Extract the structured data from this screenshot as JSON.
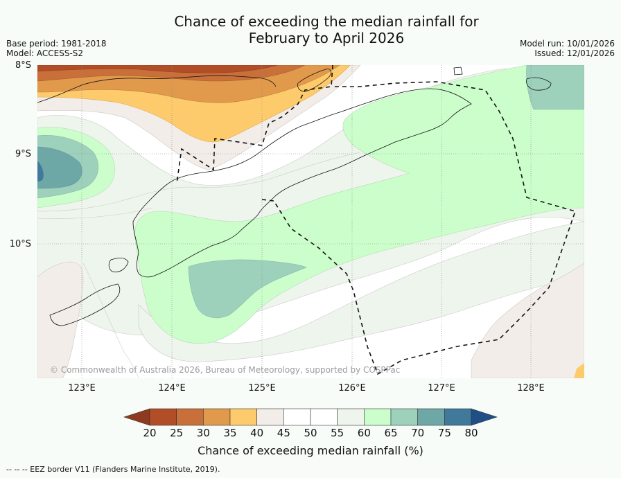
{
  "title_line1": "Chance of exceeding the median rainfall for",
  "title_line2": "February to April 2026",
  "base_period": "Base period: 1981-2018",
  "model": "Model: ACCESS-S2",
  "model_run": "Model run: 10/01/2026",
  "issued": "Issued: 12/01/2026",
  "lat_labels": [
    "8°S",
    "9°S",
    "10°S"
  ],
  "lon_labels": [
    "123°E",
    "124°E",
    "125°E",
    "126°E",
    "127°E",
    "128°E"
  ],
  "copyright": "© Commonwealth of Australia 2026, Bureau of Meteorology, supported by COSPPac",
  "colorbar": {
    "ticks": [
      "20",
      "25",
      "30",
      "35",
      "40",
      "45",
      "50",
      "55",
      "60",
      "65",
      "70",
      "75",
      "80"
    ],
    "colors": [
      "#8f3a1e",
      "#b24e27",
      "#c9703a",
      "#e19a4c",
      "#fdcb6b",
      "#f2ede8",
      "#ffffff",
      "#ffffff",
      "#eef5ec",
      "#ccfecc",
      "#9dd1bc",
      "#6ea8a6",
      "#41799b",
      "#1f4f86"
    ],
    "title": "Chance of exceeding median rainfall (%)"
  },
  "footnote": "--  --  -- EEZ border V11 (Flanders Marine Institute, 2019)."
}
